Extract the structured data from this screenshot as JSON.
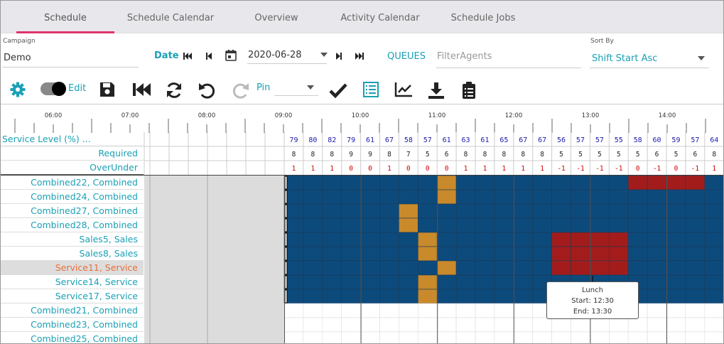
{
  "tabs": [
    {
      "label": "Schedule",
      "active": true
    },
    {
      "label": "Schedule Calendar",
      "active": false
    },
    {
      "label": "Overview",
      "active": false
    },
    {
      "label": "Activity Calendar",
      "active": false
    },
    {
      "label": "Schedule Jobs",
      "active": false
    }
  ],
  "campaign": {
    "label": "Campaign",
    "value": "Demo"
  },
  "date": {
    "label": "Date",
    "value": "2020-06-28"
  },
  "queues_label": "QUEUES",
  "filter_agents": {
    "placeholder": "FilterAgents"
  },
  "sort": {
    "label": "Sort By",
    "value": "Shift Start Asc"
  },
  "toolbar": {
    "edit_label": "Edit",
    "pin_label": "Pin"
  },
  "timeline": {
    "hours": [
      "06:00",
      "07:00",
      "08:00",
      "09:00",
      "10:00",
      "11:00",
      "12:00",
      "13:00",
      "14:00"
    ]
  },
  "stats": {
    "service_level": {
      "label": "Service Level (%) ...",
      "values": [
        "79",
        "80",
        "82",
        "79",
        "61",
        "67",
        "58",
        "57",
        "61",
        "63",
        "61",
        "65",
        "67",
        "67",
        "56",
        "57",
        "57",
        "55",
        "58",
        "60",
        "59",
        "57",
        "64"
      ]
    },
    "required": {
      "label": "Required",
      "values": [
        "8",
        "8",
        "8",
        "9",
        "9",
        "8",
        "7",
        "5",
        "6",
        "8",
        "8",
        "8",
        "8",
        "8",
        "5",
        "5",
        "5",
        "5",
        "5",
        "6",
        "5",
        "6",
        "8"
      ]
    },
    "overunder": {
      "label": "OverUnder",
      "values": [
        "1",
        "1",
        "1",
        "0",
        "0",
        "1",
        "0",
        "0",
        "0",
        "1",
        "1",
        "1",
        "1",
        "1",
        "-1",
        "-1",
        "-1",
        "-1",
        "0",
        "-1",
        "0",
        "-1",
        "1"
      ]
    }
  },
  "agents": [
    {
      "name": "Combined22, Combined",
      "selected": false
    },
    {
      "name": "Combined24, Combined",
      "selected": false
    },
    {
      "name": "Combined27, Combined",
      "selected": false
    },
    {
      "name": "Combined28, Combined",
      "selected": false
    },
    {
      "name": "Sales5, Sales",
      "selected": false
    },
    {
      "name": "Sales8, Sales",
      "selected": false
    },
    {
      "name": "Service11, Service",
      "selected": true
    },
    {
      "name": "Service14, Service",
      "selected": false
    },
    {
      "name": "Service17, Service",
      "selected": false
    },
    {
      "name": "Combined21, Combined",
      "selected": false
    },
    {
      "name": "Combined23, Combined",
      "selected": false
    },
    {
      "name": "Combined25, Combined",
      "selected": false
    }
  ],
  "tooltip": {
    "title": "Lunch",
    "start": "Start: 12:30",
    "end": "End: 13:30"
  },
  "colors": {
    "accent": "#1aa0b5",
    "tab_underline": "#e0336a",
    "work": "#0d4a7c",
    "break": "#c98a2b",
    "lunch": "#a31c1c",
    "negative": "#d00000",
    "number": "#1a1aaa"
  }
}
